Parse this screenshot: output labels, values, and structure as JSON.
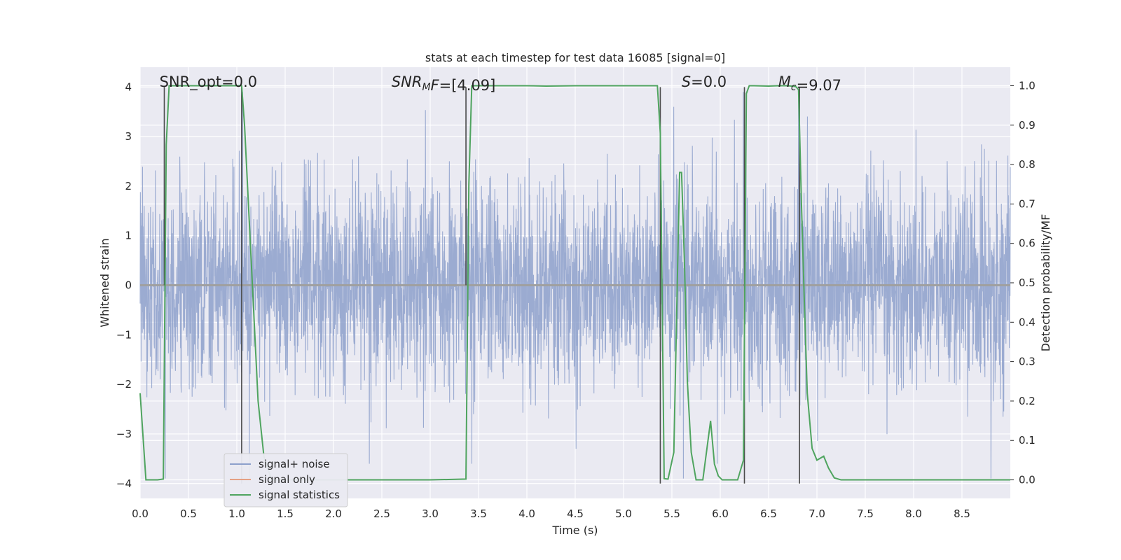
{
  "chart_data": {
    "type": "line",
    "title": "stats at each timestep for test data 16085 [signal=0]",
    "xlabel": "Time (s)",
    "ylabel": "Whitened strain",
    "y2label": "Detection probability/MF",
    "xlim": [
      0.0,
      9.0
    ],
    "ylim": [
      -4.3,
      4.4
    ],
    "y2lim": [
      -0.047,
      1.047
    ],
    "xticks": [
      0.0,
      0.5,
      1.0,
      1.5,
      2.0,
      2.5,
      3.0,
      3.5,
      4.0,
      4.5,
      5.0,
      5.5,
      6.0,
      6.5,
      7.0,
      7.5,
      8.0,
      8.5
    ],
    "xtick_labels": [
      "0.0",
      "0.5",
      "1.0",
      "1.5",
      "2.0",
      "2.5",
      "3.0",
      "3.5",
      "4.0",
      "4.5",
      "5.0",
      "5.5",
      "6.0",
      "6.5",
      "7.0",
      "7.5",
      "8.0",
      "8.5"
    ],
    "yticks": [
      -4,
      -3,
      -2,
      -1,
      0,
      1,
      2,
      3,
      4
    ],
    "ytick_labels": [
      "−4",
      "−3",
      "−2",
      "−1",
      "0",
      "1",
      "2",
      "3",
      "4"
    ],
    "y2ticks": [
      0.0,
      0.1,
      0.2,
      0.3,
      0.4,
      0.5,
      0.6,
      0.7,
      0.8,
      0.9,
      1.0
    ],
    "y2tick_labels": [
      "0.0",
      "0.1",
      "0.2",
      "0.3",
      "0.4",
      "0.5",
      "0.6",
      "0.7",
      "0.8",
      "0.9",
      "1.0"
    ],
    "grid": true,
    "legend_position": "lower-left",
    "annotations": [
      {
        "text": "SNR_opt=0.0",
        "x": 0.2
      },
      {
        "text_parts": [
          {
            "t": "SNR",
            "i": true
          },
          {
            "t": "M",
            "i": true,
            "sub": true
          },
          {
            "t": "F",
            "i": true
          },
          {
            "t": "=[4.09]",
            "i": false
          }
        ],
        "x": 2.6
      },
      {
        "text_parts": [
          {
            "t": "S",
            "i": true
          },
          {
            "t": "=0.0",
            "i": false
          }
        ],
        "x": 5.6
      },
      {
        "text_parts": [
          {
            "t": "M",
            "i": true
          },
          {
            "t": "c",
            "i": true,
            "sub": true
          },
          {
            "t": "=9.07",
            "i": false
          }
        ],
        "x": 6.6
      }
    ],
    "series": [
      {
        "name": "signal+ noise",
        "color": "#8da0cb",
        "axis": "left",
        "kind": "noise",
        "envelope_std": 1.0,
        "visible_peaks": [
          {
            "x": 0.25,
            "y": 4.0
          },
          {
            "x": 0.26,
            "y": -3.9
          },
          {
            "x": 1.06,
            "y": 3.9
          },
          {
            "x": 1.13,
            "y": -3.9
          },
          {
            "x": 3.37,
            "y": 3.9
          },
          {
            "x": 5.38,
            "y": 3.3
          },
          {
            "x": 5.52,
            "y": 3.6
          },
          {
            "x": 5.62,
            "y": 3.8
          },
          {
            "x": 5.62,
            "y": -3.9
          },
          {
            "x": 6.24,
            "y": 3.9
          },
          {
            "x": 6.81,
            "y": 3.9
          },
          {
            "x": 8.8,
            "y": -3.9
          }
        ]
      },
      {
        "name": "signal only",
        "color": "#e5a084",
        "axis": "left",
        "x": [
          0.0,
          9.0
        ],
        "y": [
          0.0,
          0.0
        ]
      },
      {
        "name": "signal statistics",
        "color": "#4fa45f",
        "axis": "right",
        "x": [
          0.0,
          0.06,
          0.12,
          0.18,
          0.24,
          0.27,
          0.3,
          0.32,
          0.36,
          0.45,
          0.6,
          0.8,
          1.0,
          1.05,
          1.08,
          1.12,
          1.17,
          1.22,
          1.28,
          1.36,
          1.5,
          2.0,
          2.5,
          3.0,
          3.37,
          3.4,
          3.43,
          3.5,
          4.0,
          4.2,
          4.5,
          5.0,
          5.35,
          5.38,
          5.42,
          5.46,
          5.52,
          5.56,
          5.58,
          5.6,
          5.63,
          5.66,
          5.7,
          5.75,
          5.82,
          5.9,
          5.94,
          5.98,
          6.02,
          6.08,
          6.18,
          6.24,
          6.27,
          6.3,
          6.35,
          6.5,
          6.6,
          6.7,
          6.78,
          6.81,
          6.84,
          6.87,
          6.9,
          6.95,
          7.0,
          7.07,
          7.12,
          7.18,
          7.25,
          7.5,
          8.0,
          8.5,
          9.0
        ],
        "y": [
          0.22,
          0.0,
          0.0,
          0.0,
          0.002,
          0.85,
          1.0,
          1.0,
          1.0,
          1.0,
          1.0,
          1.0,
          1.0,
          1.0,
          0.9,
          0.7,
          0.45,
          0.2,
          0.06,
          0.0,
          0.0,
          0.0,
          0.0,
          0.0,
          0.002,
          0.75,
          1.0,
          1.0,
          1.0,
          0.999,
          1.0,
          1.0,
          1.0,
          0.88,
          0.003,
          0.002,
          0.07,
          0.55,
          0.78,
          0.78,
          0.55,
          0.25,
          0.07,
          0.0,
          0.0,
          0.15,
          0.04,
          0.01,
          0.0,
          0.0,
          0.0,
          0.05,
          0.98,
          1.0,
          1.0,
          0.999,
          1.0,
          1.0,
          0.998,
          0.99,
          0.7,
          0.45,
          0.22,
          0.08,
          0.05,
          0.06,
          0.03,
          0.005,
          0.0,
          0.0,
          0.0,
          0.0,
          0.0
        ]
      }
    ],
    "vertical_markers": [
      {
        "x": 0.25,
        "y_top": 4.0,
        "y_bottom": 0.0
      },
      {
        "x": 1.05,
        "y_top": 4.0,
        "y_bottom": -4.0
      },
      {
        "x": 3.37,
        "y_top": 4.0,
        "y_bottom": 0.0
      },
      {
        "x": 5.38,
        "y_top": 4.0,
        "y_bottom": -4.0
      },
      {
        "x": 6.25,
        "y_top": 4.0,
        "y_bottom": -4.0
      },
      {
        "x": 6.82,
        "y_top": 4.0,
        "y_bottom": -4.0
      }
    ]
  },
  "legend": {
    "items": [
      {
        "label": "signal+ noise",
        "color": "#8da0cb"
      },
      {
        "label": "signal only",
        "color": "#e5a084"
      },
      {
        "label": "signal statistics",
        "color": "#4fa45f"
      }
    ]
  },
  "colors": {
    "plot_bg": "#eaeaf2",
    "grid": "#ffffff",
    "text": "#262626",
    "marker_line": "#4a4a4a"
  }
}
